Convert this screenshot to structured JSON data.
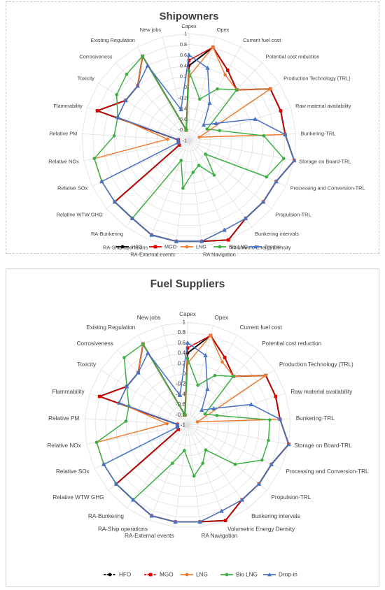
{
  "charts_common": {
    "axes": [
      "Capex",
      "Opex",
      "Current fuel cost",
      "Potential cost reduction",
      "Production Technology (TRL)",
      "Raw material availability",
      "Bunkering-TRL",
      "Storage on Board-TRL",
      "Processing and Conversion-TRL",
      "Propulsion-TRL",
      "Bunkering intervals",
      "Volumetric Energy Density",
      "RA Navigation",
      "RA-External events",
      "RA-Ship operations",
      "RA-Bunkering",
      "Relative WTW GHG",
      "Relative SOx",
      "Relative NOx",
      "Relative PM",
      "Flammability",
      "Toxicity",
      "Corrosiveness",
      "Existing Regulation",
      "New jobs"
    ],
    "ticks": [
      "-1",
      "-0.8",
      "-0.6",
      "-0.4",
      "-0.2",
      "0",
      "0.2",
      "0.4",
      "0.6",
      "0.8",
      "1"
    ],
    "colors": {
      "HFO": "#000000",
      "MGO": "#e00000",
      "LNG": "#ed7d31",
      "Bio LNG": "#3cb043",
      "Drop-in": "#4472c4"
    }
  },
  "chart_data": [
    {
      "type": "radar",
      "title": "Shipowners",
      "rlim": [
        -1,
        1
      ],
      "legend_position": "bottom",
      "series": [
        {
          "name": "HFO",
          "marker": "circle",
          "values": [
            0.4,
            0.8,
            0.5,
            0.3,
            0.8,
            0.8,
            0.8,
            1,
            0.8,
            0.8,
            0.8,
            1,
            0.9,
            0.9,
            0.9,
            0.8,
            0.8,
            -0.8,
            -0.8,
            -0.8,
            0.8,
            0.4,
            0.4,
            0.8,
            -0.8
          ]
        },
        {
          "name": "MGO",
          "marker": "square",
          "values": [
            0.5,
            0.8,
            0.5,
            0.3,
            0.8,
            0.8,
            0.8,
            1,
            0.8,
            0.8,
            0.8,
            1,
            0.9,
            0.9,
            0.9,
            0.8,
            0.8,
            -0.8,
            -0.8,
            -0.8,
            0.8,
            0.4,
            0.4,
            0.8,
            -0.8
          ]
        },
        {
          "name": "LNG",
          "marker": "circle",
          "values": [
            0.2,
            0.8,
            0.4,
            0.3,
            0.8,
            -0.8,
            0.8,
            1,
            0.8,
            0.8,
            0.8,
            0.8,
            0.9,
            0.9,
            0.9,
            0.8,
            0.8,
            0.8,
            0.8,
            -0.6,
            0.4,
            0.4,
            0.4,
            0.8,
            -0.8
          ]
        },
        {
          "name": "Bio LNG",
          "marker": "circle",
          "values": [
            0.3,
            -0.2,
            0.1,
            0.3,
            -0.6,
            -0.4,
            0.4,
            0.8,
            0.6,
            -0.6,
            -0.2,
            -0.5,
            -0.4,
            -0.1,
            -0.6,
            0.8,
            0.8,
            0.8,
            0.8,
            0.4,
            0.4,
            0.6,
            0.7,
            0.8,
            -0.8
          ]
        },
        {
          "name": "Drop-in",
          "marker": "triangle",
          "values": [
            0.6,
            0.4,
            -0.2,
            -0.6,
            -0.4,
            0.3,
            0.8,
            1,
            0.8,
            0.8,
            0.8,
            0.8,
            0.9,
            0.9,
            0.9,
            0.8,
            0.8,
            0.8,
            -0.8,
            -0.8,
            0.4,
            0.4,
            0.4,
            0.6,
            -0.4
          ]
        }
      ]
    },
    {
      "type": "radar",
      "title": "Fuel Suppliers",
      "rlim": [
        -1,
        1
      ],
      "legend_position": "bottom",
      "series": [
        {
          "name": "HFO",
          "marker": "circle",
          "values": [
            0.4,
            0.8,
            0.5,
            0.3,
            0.8,
            0.8,
            0.8,
            1,
            0.8,
            0.8,
            0.8,
            1,
            0.9,
            0.9,
            0.9,
            0.8,
            0.8,
            -0.8,
            -0.8,
            -0.8,
            0.8,
            0.4,
            0.4,
            0.8,
            -0.8
          ]
        },
        {
          "name": "MGO",
          "marker": "square",
          "values": [
            0.5,
            0.8,
            0.5,
            0.3,
            0.8,
            0.8,
            0.8,
            1,
            0.8,
            0.8,
            0.8,
            1,
            0.9,
            0.9,
            0.9,
            0.8,
            0.8,
            -0.8,
            -0.8,
            -0.8,
            0.8,
            0.4,
            0.4,
            0.8,
            -0.8
          ]
        },
        {
          "name": "LNG",
          "marker": "circle",
          "values": [
            0.2,
            0.8,
            0.4,
            0.3,
            0.8,
            -0.8,
            0.8,
            1,
            0.8,
            0.8,
            0.8,
            0.8,
            0.9,
            0.9,
            0.9,
            0.8,
            0.8,
            0.8,
            0.8,
            -0.6,
            0.4,
            0.4,
            0.4,
            0.8,
            -0.8
          ]
        },
        {
          "name": "Bio LNG",
          "marker": "circle",
          "values": [
            0.3,
            -0.2,
            0.1,
            0.3,
            -0.6,
            -0.4,
            0.6,
            0.6,
            0.6,
            0.2,
            -0.4,
            -0.2,
            0.0,
            -0.5,
            -0.2,
            0.8,
            0.8,
            0.8,
            0.8,
            0.2,
            0.2,
            0.4,
            0.8,
            0.8,
            -0.8
          ]
        },
        {
          "name": "Drop-in",
          "marker": "triangle",
          "values": [
            0.6,
            0.4,
            -0.2,
            -0.6,
            -0.4,
            0.3,
            0.8,
            1,
            0.8,
            0.8,
            0.8,
            0.8,
            0.9,
            0.9,
            0.9,
            0.8,
            0.8,
            0.8,
            -0.8,
            -0.8,
            0.4,
            0.4,
            0.4,
            0.6,
            -0.4
          ]
        }
      ]
    }
  ]
}
